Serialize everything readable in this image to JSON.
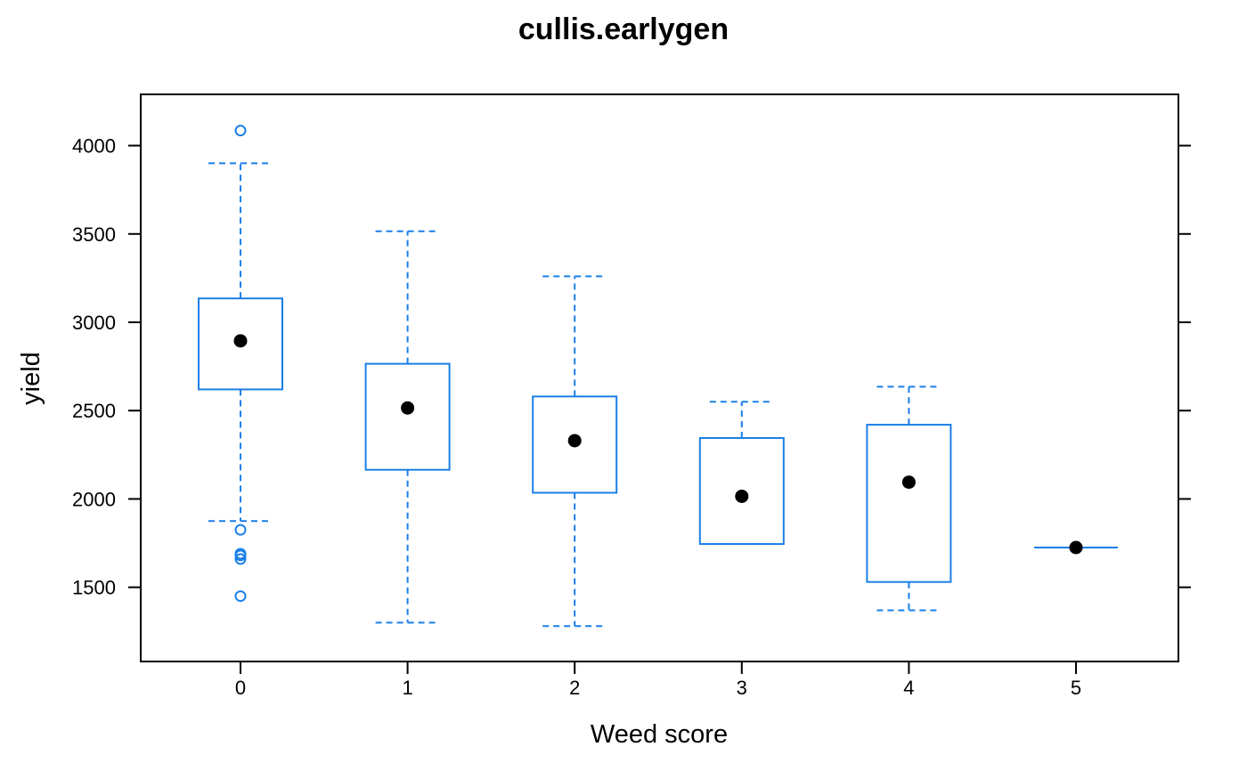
{
  "chart_data": {
    "type": "box",
    "title": "cullis.earlygen",
    "xlabel": "Weed score",
    "ylabel": "yield",
    "categories": [
      "0",
      "1",
      "2",
      "3",
      "4",
      "5"
    ],
    "yticks": [
      1500,
      2000,
      2500,
      3000,
      3500,
      4000
    ],
    "ylim": [
      1080,
      4290
    ],
    "grid": false,
    "legend": "none",
    "colors": {
      "box": "#1a7fe8",
      "median": "#000000",
      "frame": "#000000"
    },
    "boxes": [
      {
        "category": "0",
        "whisker_low": 1875,
        "q1": 2620,
        "median": 2895,
        "q3": 3135,
        "whisker_high": 3900,
        "outliers": [
          1450,
          1660,
          1680,
          1690,
          1825,
          4085
        ]
      },
      {
        "category": "1",
        "whisker_low": 1300,
        "q1": 2165,
        "median": 2515,
        "q3": 2765,
        "whisker_high": 3515,
        "outliers": []
      },
      {
        "category": "2",
        "whisker_low": 1280,
        "q1": 2035,
        "median": 2330,
        "q3": 2580,
        "whisker_high": 3260,
        "outliers": []
      },
      {
        "category": "3",
        "whisker_low": 1745,
        "q1": 1745,
        "median": 2015,
        "q3": 2345,
        "whisker_high": 2550,
        "outliers": []
      },
      {
        "category": "4",
        "whisker_low": 1370,
        "q1": 1530,
        "median": 2095,
        "q3": 2420,
        "whisker_high": 2635,
        "outliers": []
      },
      {
        "category": "5",
        "whisker_low": 1725,
        "q1": 1725,
        "median": 1725,
        "q3": 1725,
        "whisker_high": 1725,
        "outliers": []
      }
    ]
  }
}
